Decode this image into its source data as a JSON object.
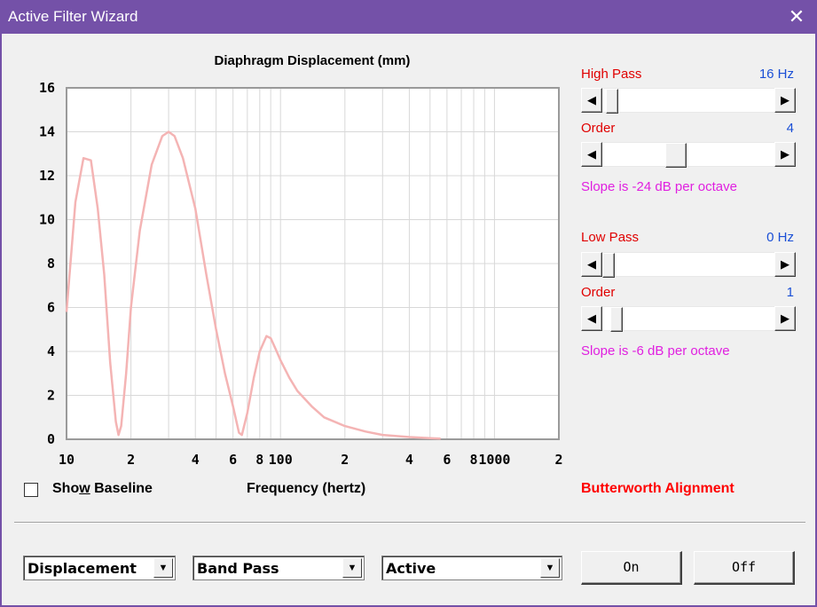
{
  "window": {
    "title": "Active Filter Wizard",
    "close_glyph": "✕",
    "accent": "#7451a8"
  },
  "chart": {
    "title": "Diaphragm Displacement (mm)",
    "x_axis_label": "Frequency (hertz)",
    "show_baseline_label_pre": "Sho",
    "show_baseline_label_u": "w",
    "show_baseline_label_post": " Baseline",
    "show_baseline_checked": false,
    "alignment": "Butterworth Alignment"
  },
  "chart_data": {
    "type": "line",
    "title": "Diaphragm Displacement (mm)",
    "xlabel": "Frequency (hertz)",
    "ylabel": "",
    "xscale": "log",
    "xlim": [
      10,
      2000
    ],
    "ylim": [
      0,
      16
    ],
    "x_tick_labels": [
      "10",
      "2",
      "4",
      "6",
      "8",
      "100",
      "2",
      "4",
      "6",
      "8",
      "1000",
      "2"
    ],
    "y_tick_labels": [
      "0",
      "2",
      "4",
      "6",
      "8",
      "10",
      "12",
      "14",
      "16"
    ],
    "grid": true,
    "line_color": "#f4b4b4",
    "series": [
      {
        "x": [
          10,
          11,
          12,
          13,
          14,
          15,
          16,
          17,
          17.5,
          18,
          19,
          20,
          22,
          25,
          28,
          30,
          32,
          35,
          40,
          45,
          50,
          55,
          60,
          64,
          66,
          70,
          75,
          80,
          86,
          90,
          95,
          100,
          110,
          120,
          140,
          160,
          200,
          250,
          300,
          400,
          500,
          560
        ],
        "y": [
          5.8,
          10.8,
          12.8,
          12.7,
          10.5,
          7.5,
          3.5,
          0.8,
          0.2,
          0.6,
          3.0,
          6.0,
          9.5,
          12.5,
          13.8,
          14.0,
          13.8,
          12.8,
          10.5,
          7.5,
          5.0,
          3.0,
          1.5,
          0.3,
          0.2,
          1.2,
          2.8,
          4.0,
          4.7,
          4.6,
          4.1,
          3.6,
          2.8,
          2.2,
          1.5,
          1.0,
          0.6,
          0.35,
          0.2,
          0.1,
          0.05,
          0.03
        ]
      }
    ]
  },
  "high_pass": {
    "label": "High Pass",
    "value": "16 Hz",
    "position": 0.02,
    "order_label": "Order",
    "order_value": "4",
    "order_position": 0.42,
    "slope_text": "Slope is -24 dB per octave"
  },
  "low_pass": {
    "label": "Low Pass",
    "value": "0 Hz",
    "position": 0.0,
    "order_label": "Order",
    "order_value": "1",
    "order_position": 0.05,
    "slope_text": "Slope is -6 dB per octave"
  },
  "controls": {
    "combo_display": "Displacement",
    "combo_filter": "Band Pass",
    "combo_mode": "Active",
    "on_button": "On",
    "off_button": "Off",
    "dropdown_glyph": "▼",
    "arrow_left": "◀",
    "arrow_right": "▶"
  }
}
